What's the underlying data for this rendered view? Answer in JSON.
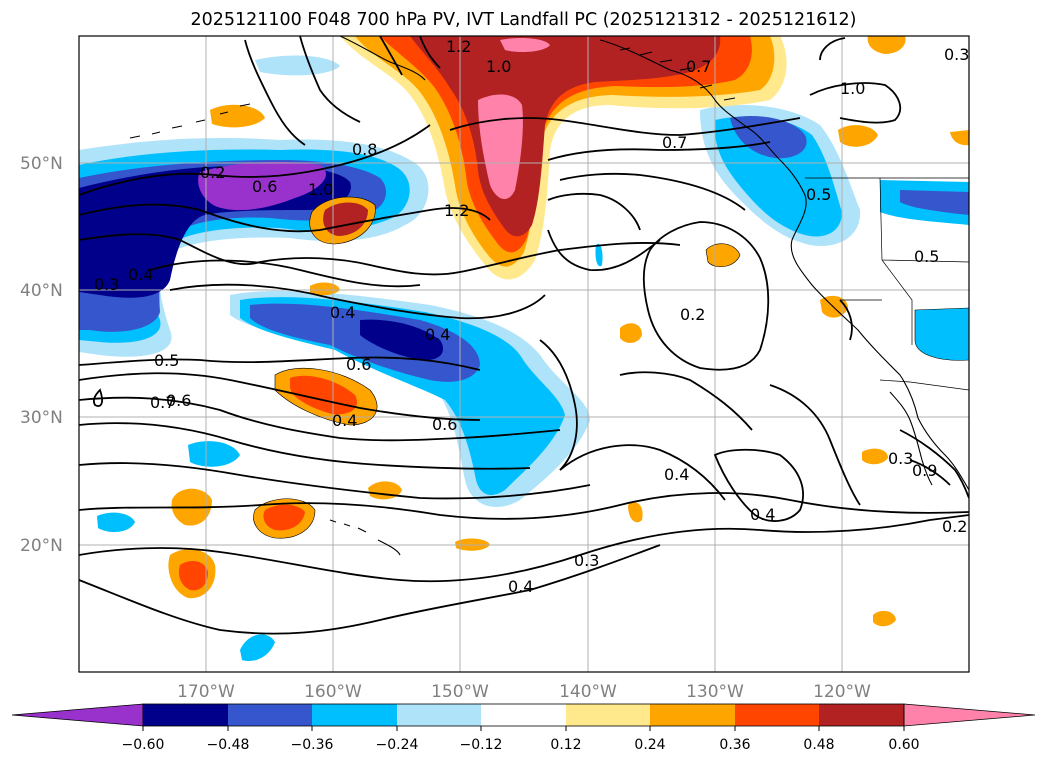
{
  "title": "2025121100 F048 700 hPa PV, IVT Landfall PC (2025121312 - 2025121612)",
  "map": {
    "projection": "equirectangular",
    "lon_range": [
      -180,
      -110
    ],
    "lat_range": [
      10,
      60
    ],
    "lat_ticks": [
      "50°N",
      "40°N",
      "30°N",
      "20°N"
    ],
    "lon_ticks": [
      "170°W",
      "160°W",
      "150°W",
      "140°W",
      "130°W",
      "120°W"
    ],
    "gridlines": true,
    "fill_colors": {
      "neg_extreme": "#9932cc",
      "neg_060": "#00008b",
      "neg_048": "#3656cd",
      "neg_036": "#00bfff",
      "neg_024": "#aee3fa",
      "pos_024": "#ffe98c",
      "pos_036": "#ffa500",
      "pos_048": "#ff4500",
      "pos_060": "#b22222",
      "pos_extreme": "#ff82ab"
    },
    "contour_labels": [
      "1.2",
      "1.0",
      "0.7",
      "1.0",
      "0.2",
      "0.8",
      "0.6",
      "1.0",
      "1.2",
      "0.7",
      "0.5",
      "0.5",
      "0.3",
      "0.4",
      "0.4",
      "0.6",
      "0.5",
      "0.7",
      "0.6",
      "0.4",
      "0.6",
      "0.4",
      "0.2",
      "0.4",
      "0.4",
      "0.3",
      "0.4",
      "0.3",
      "0.2",
      "0.9",
      "0.3"
    ]
  },
  "colorbar": {
    "ticks": [
      "−0.60",
      "−0.48",
      "−0.36",
      "−0.24",
      "−0.12",
      "0.12",
      "0.24",
      "0.36",
      "0.48",
      "0.60"
    ],
    "colors": [
      "#00008b",
      "#3656cd",
      "#00bfff",
      "#aee3fa",
      "#ffffff",
      "#ffe98c",
      "#ffa500",
      "#ff4500",
      "#b22222",
      "#ff82ab"
    ],
    "under_color": "#9932cc",
    "over_color": "#ff82ab"
  }
}
